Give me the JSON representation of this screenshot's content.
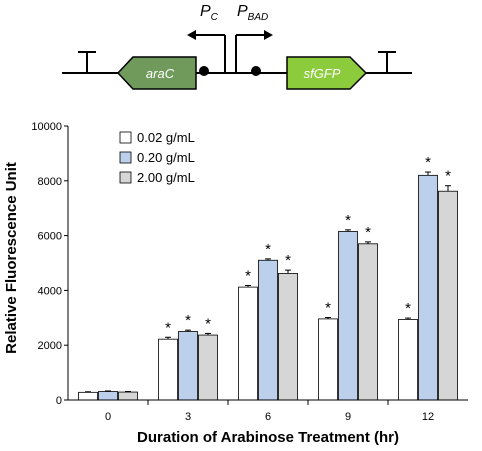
{
  "diagram": {
    "gene_left": "araC",
    "gene_right": "sfGFP",
    "promoter_left": {
      "main": "P",
      "sub": "C"
    },
    "promoter_right": {
      "main": "P",
      "sub": "BAD"
    },
    "colors": {
      "araC_fill": "#6f9a5c",
      "sfGFP_fill": "#8ccc3c",
      "backbone": "#000000"
    }
  },
  "chart_data": {
    "type": "bar",
    "title": "",
    "xlabel": "Duration of Arabinose Treatment (hr)",
    "ylabel": "Relative Fluorescence Unit",
    "categories": [
      "0",
      "3",
      "6",
      "9",
      "12"
    ],
    "ylim": [
      0,
      10000
    ],
    "yticks": [
      0,
      2000,
      4000,
      6000,
      8000,
      10000
    ],
    "grid": false,
    "legend_position": "top-left",
    "series": [
      {
        "name": "0.02 g/mL",
        "color": "#ffffff",
        "values": [
          280,
          2220,
          4120,
          2960,
          2940
        ],
        "errors": [
          20,
          70,
          60,
          50,
          50
        ],
        "significant": [
          false,
          true,
          true,
          true,
          true
        ]
      },
      {
        "name": "0.20 g/mL",
        "color": "#bcd0ec",
        "values": [
          310,
          2500,
          5100,
          6150,
          8200
        ],
        "errors": [
          20,
          50,
          50,
          60,
          120
        ],
        "significant": [
          false,
          true,
          true,
          true,
          true
        ]
      },
      {
        "name": "2.00 g/mL",
        "color": "#d6d6d6",
        "values": [
          290,
          2370,
          4620,
          5700,
          7620
        ],
        "errors": [
          20,
          60,
          120,
          70,
          200
        ],
        "significant": [
          false,
          true,
          true,
          true,
          true
        ]
      }
    ],
    "significance_marker": "*"
  }
}
